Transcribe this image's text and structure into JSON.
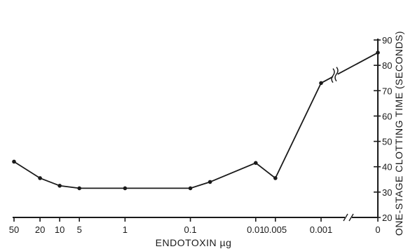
{
  "chart_data": {
    "type": "line",
    "title": "",
    "xlabel": "ENDOTOXIN µg",
    "ylabel": "ONE-STAGE CLOTTING TIME  (SECONDS)",
    "y_axis_position": "right",
    "x_scale": "log",
    "x_axis_break": "between 0.001 and 0",
    "y_axis_break": "above 70",
    "grid": false,
    "legend": "none",
    "ylim": [
      20,
      90
    ],
    "xticks": [
      50,
      20,
      10,
      5,
      1,
      0.1,
      0.01,
      0.005,
      0.001,
      0
    ],
    "xtick_labels": [
      "50",
      "20",
      "10",
      "5",
      "1",
      "0.1",
      "0.01",
      "0.005",
      "0.001",
      "0"
    ],
    "yticks": [
      20,
      30,
      40,
      50,
      60,
      70,
      80,
      90
    ],
    "ytick_labels": [
      "20",
      "30",
      "40",
      "50",
      "60",
      "70",
      "80",
      "90"
    ],
    "series": [
      {
        "x": [
          50,
          20,
          10,
          5,
          1,
          0.1,
          0.05,
          0.01,
          0.005,
          0.001,
          0
        ],
        "y": [
          42,
          35.5,
          32.5,
          31.5,
          31.5,
          31.5,
          34,
          41.5,
          35.5,
          73,
          85
        ]
      }
    ]
  }
}
